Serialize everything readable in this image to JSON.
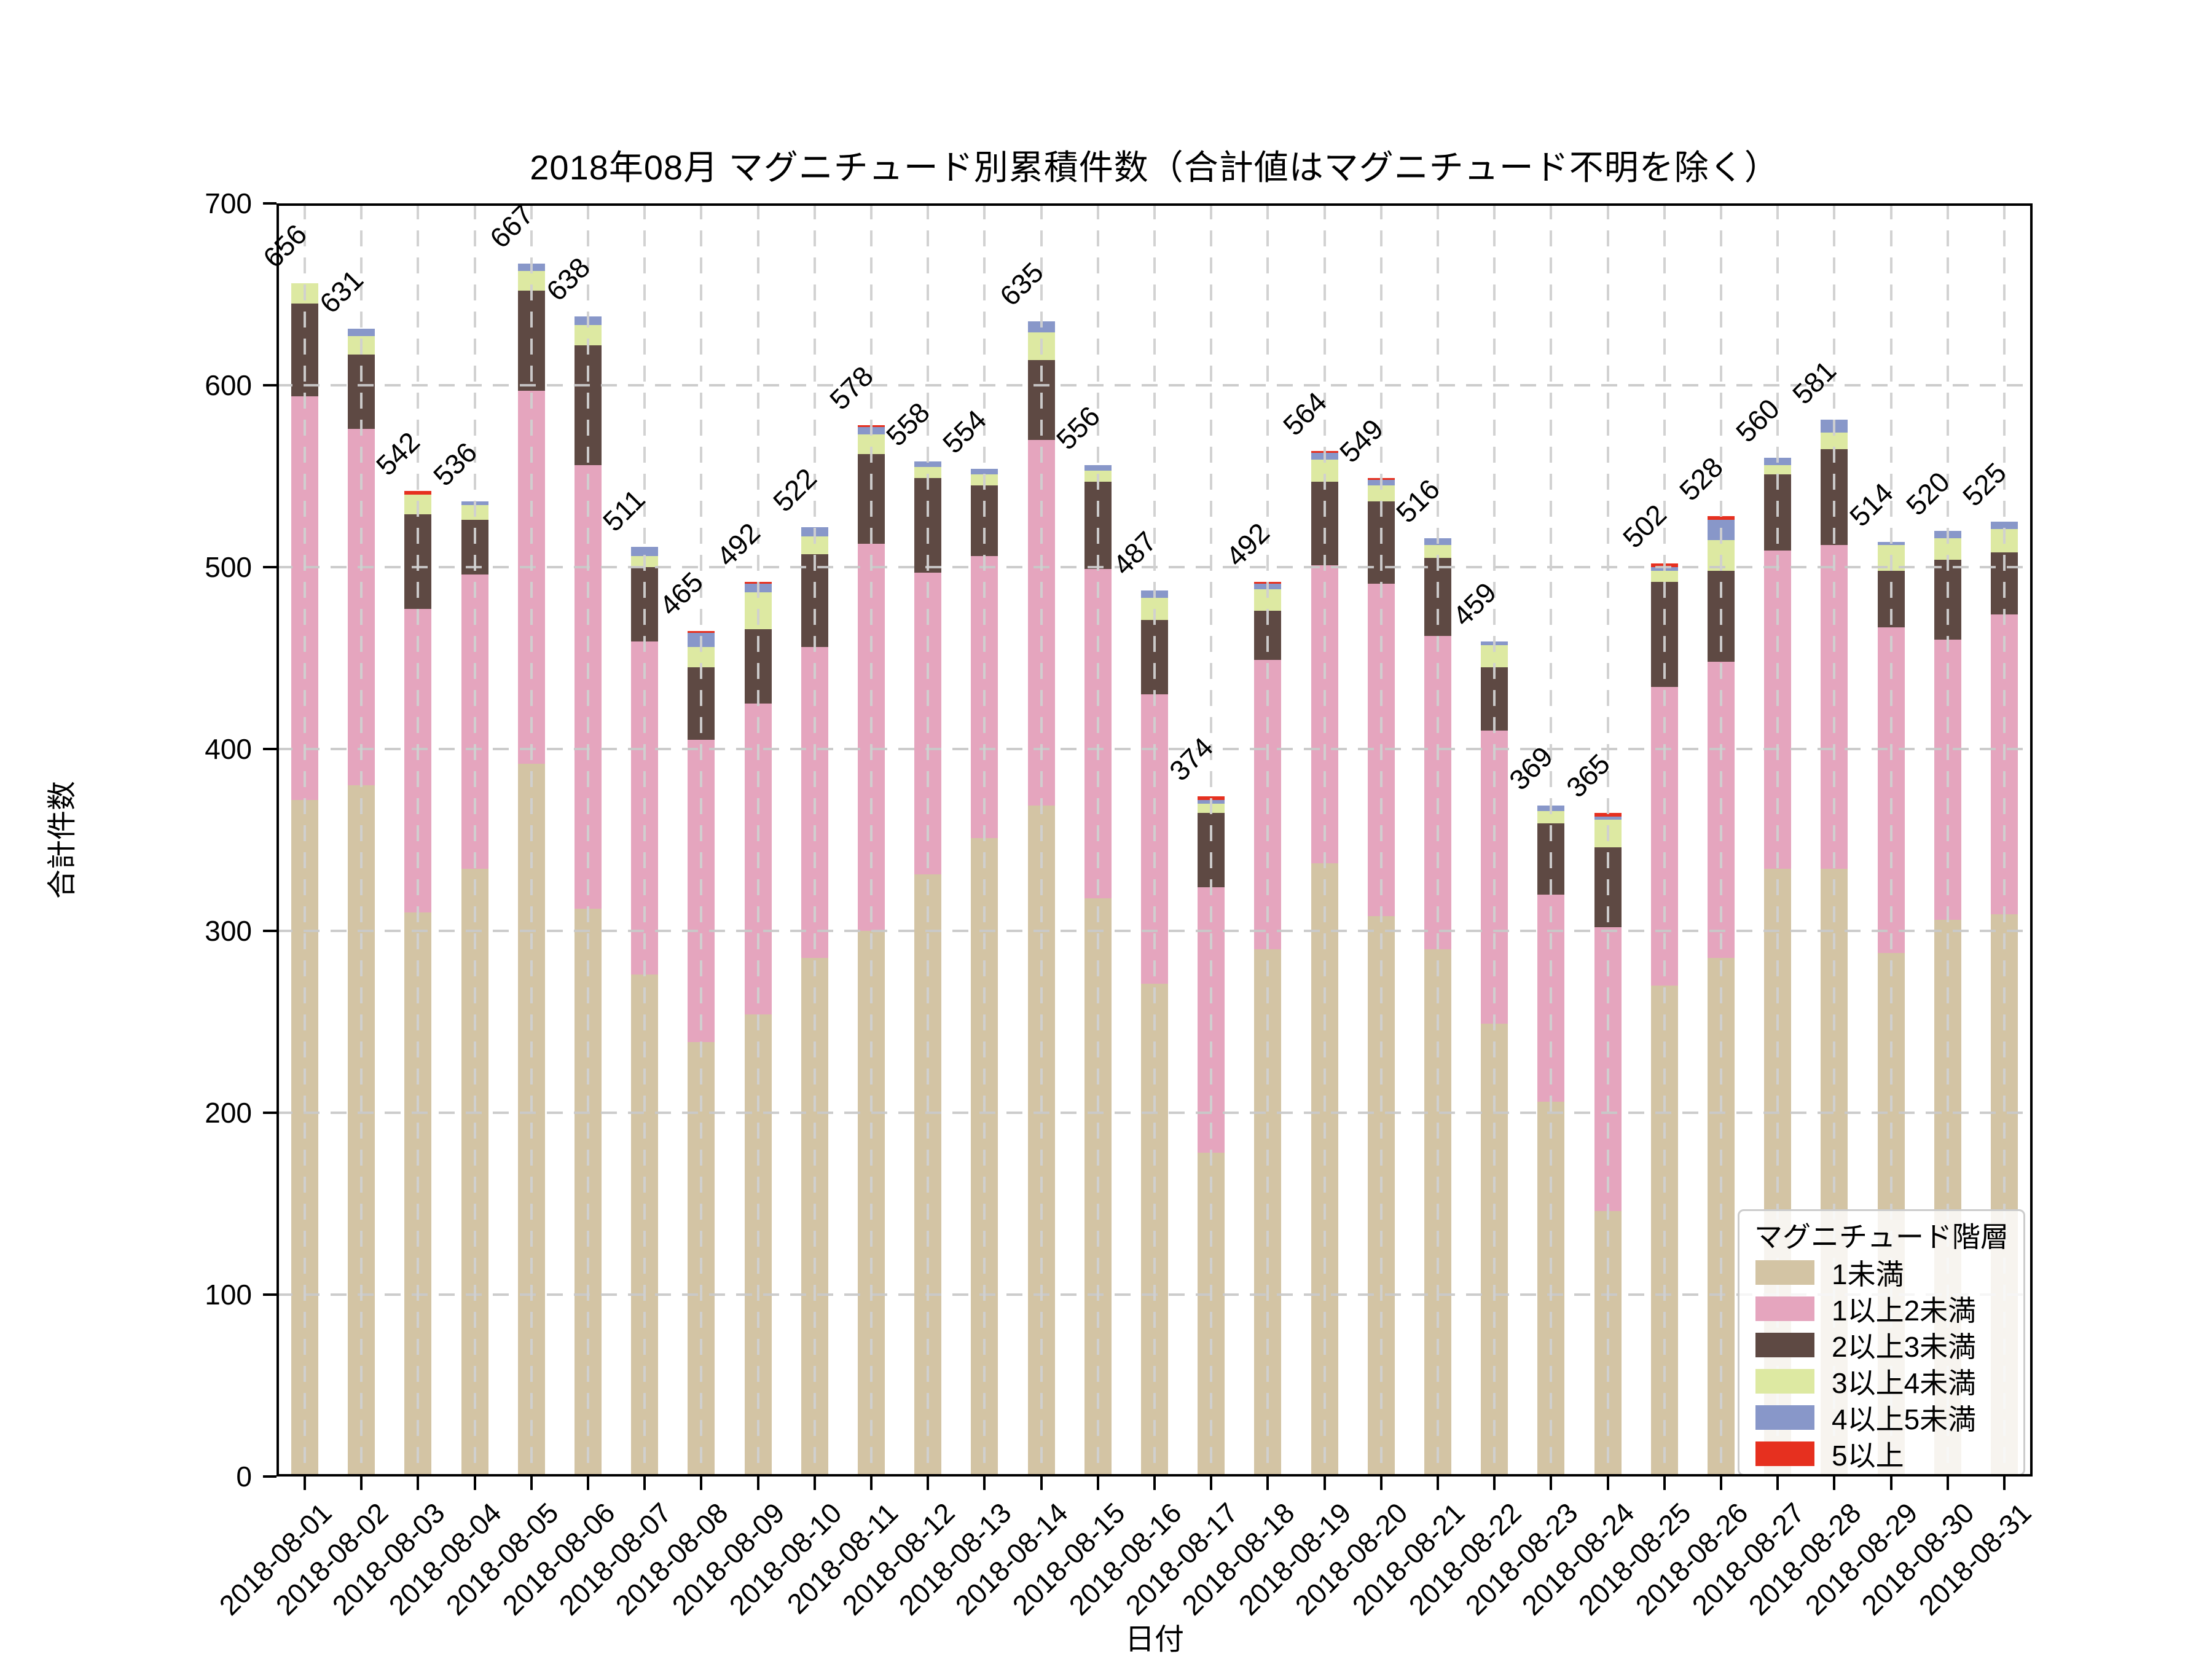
{
  "title": "2018年08月 マグニチュード別累積件数（合計値はマグニチュード不明を除く）",
  "axes": {
    "ylabel": "合計件数",
    "xlabel": "日付",
    "yticks": [
      0,
      100,
      200,
      300,
      400,
      500,
      600,
      700
    ]
  },
  "legend": {
    "title": "マグニチュード階層",
    "position": "lower right"
  },
  "chart_data": {
    "type": "bar",
    "stacked": true,
    "title": "2018年08月 マグニチュード別累積件数（合計値はマグニチュード不明を除く）",
    "xlabel": "日付",
    "ylabel": "合計件数",
    "ylim": [
      0,
      700
    ],
    "grid": "dashed",
    "legend_title": "マグニチュード階層",
    "categories": [
      "2018-08-01",
      "2018-08-02",
      "2018-08-03",
      "2018-08-04",
      "2018-08-05",
      "2018-08-06",
      "2018-08-07",
      "2018-08-08",
      "2018-08-09",
      "2018-08-10",
      "2018-08-11",
      "2018-08-12",
      "2018-08-13",
      "2018-08-14",
      "2018-08-15",
      "2018-08-16",
      "2018-08-17",
      "2018-08-18",
      "2018-08-19",
      "2018-08-20",
      "2018-08-21",
      "2018-08-22",
      "2018-08-23",
      "2018-08-24",
      "2018-08-25",
      "2018-08-26",
      "2018-08-27",
      "2018-08-28",
      "2018-08-29",
      "2018-08-30",
      "2018-08-31"
    ],
    "totals": [
      656,
      631,
      542,
      536,
      667,
      638,
      511,
      465,
      492,
      522,
      578,
      558,
      554,
      635,
      556,
      487,
      374,
      492,
      564,
      549,
      516,
      459,
      369,
      365,
      502,
      528,
      560,
      581,
      514,
      520,
      525
    ],
    "series": [
      {
        "name": "1未満",
        "color": "#d3c4a4",
        "values": [
          372,
          380,
          310,
          334,
          392,
          312,
          276,
          239,
          254,
          285,
          300,
          331,
          351,
          369,
          318,
          271,
          178,
          290,
          337,
          308,
          290,
          249,
          206,
          146,
          270,
          285,
          334,
          334,
          288,
          306,
          309
        ]
      },
      {
        "name": "1以上2未満",
        "color": "#e5a5be",
        "values": [
          222,
          196,
          167,
          162,
          205,
          244,
          183,
          166,
          171,
          171,
          213,
          166,
          155,
          201,
          181,
          159,
          146,
          159,
          164,
          183,
          172,
          161,
          114,
          156,
          164,
          163,
          175,
          178,
          179,
          154,
          165
        ]
      },
      {
        "name": "2以上3未満",
        "color": "#5e4943",
        "values": [
          51,
          41,
          52,
          30,
          55,
          66,
          41,
          40,
          41,
          51,
          49,
          52,
          39,
          44,
          48,
          41,
          41,
          27,
          46,
          45,
          43,
          35,
          39,
          44,
          58,
          50,
          42,
          53,
          31,
          44,
          34
        ]
      },
      {
        "name": "3以上4未満",
        "color": "#dde9a2",
        "values": [
          11,
          10,
          11,
          8,
          11,
          11,
          6,
          11,
          20,
          10,
          11,
          6,
          6,
          15,
          6,
          12,
          5,
          12,
          12,
          9,
          7,
          12,
          7,
          15,
          6,
          17,
          5,
          9,
          14,
          12,
          13
        ]
      },
      {
        "name": "4以上5未満",
        "color": "#8897c9",
        "values": [
          0,
          4,
          0,
          2,
          4,
          5,
          5,
          8,
          5,
          5,
          4,
          3,
          3,
          6,
          3,
          4,
          2,
          3,
          4,
          3,
          4,
          2,
          3,
          2,
          2,
          11,
          4,
          7,
          2,
          4,
          4
        ]
      },
      {
        "name": "5以上",
        "color": "#e6301f",
        "values": [
          0,
          0,
          2,
          0,
          0,
          0,
          0,
          1,
          1,
          0,
          1,
          0,
          0,
          0,
          0,
          0,
          2,
          1,
          1,
          1,
          0,
          0,
          0,
          2,
          2,
          2,
          0,
          0,
          0,
          0,
          0
        ]
      }
    ]
  }
}
